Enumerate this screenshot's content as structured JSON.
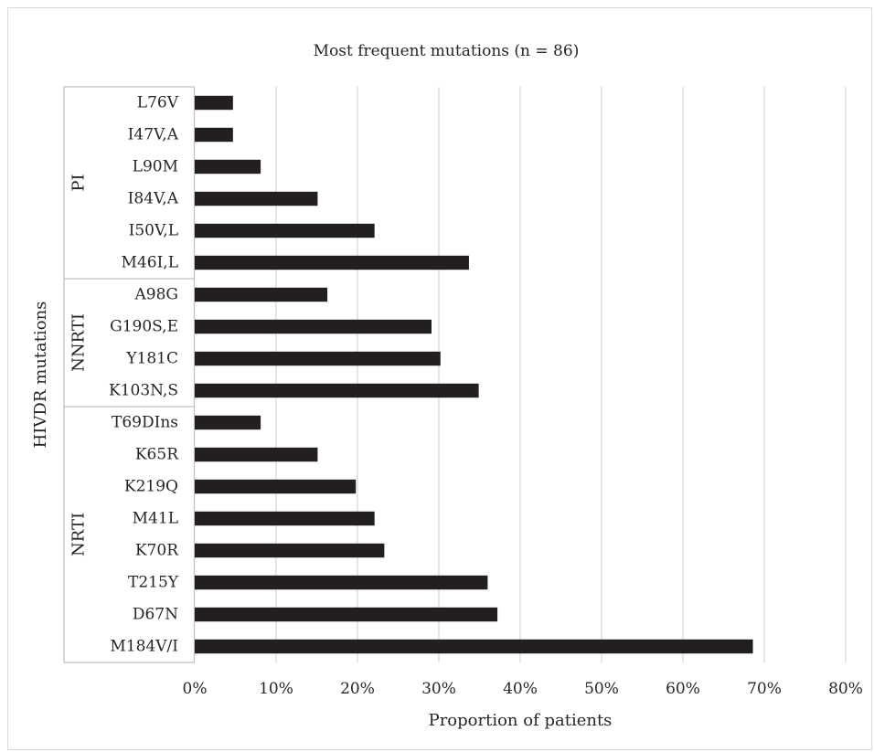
{
  "chart_data": {
    "type": "bar",
    "orientation": "horizontal",
    "title": "Most frequent mutations (n = 86)",
    "xlabel": "Proportion of patients",
    "ylabel": "HIVDR mutations",
    "xlim": [
      0,
      80
    ],
    "x_ticks": [
      "0%",
      "10%",
      "20%",
      "30%",
      "40%",
      "50%",
      "60%",
      "70%",
      "80%"
    ],
    "grid": true,
    "legend": "none",
    "bar_color": "#231f20",
    "groups": [
      {
        "label": "PI",
        "categories": [
          "L76V",
          "I47V,A",
          "L90M",
          "I84V,A",
          "I50V,L",
          "M46I,L"
        ],
        "values": [
          4.7,
          4.7,
          8.1,
          15.1,
          22.1,
          33.7
        ]
      },
      {
        "label": "NNRTI",
        "categories": [
          "A98G",
          "G190S,E",
          "Y181C",
          "K103N,S"
        ],
        "values": [
          16.3,
          29.1,
          30.2,
          34.9
        ]
      },
      {
        "label": "NRTI",
        "categories": [
          "T69DIns",
          "K65R",
          "K219Q",
          "M41L",
          "K70R",
          "T215Y",
          "D67N",
          "M184V/I"
        ],
        "values": [
          8.1,
          15.1,
          19.8,
          22.1,
          23.3,
          36.0,
          37.2,
          68.6
        ]
      }
    ]
  }
}
